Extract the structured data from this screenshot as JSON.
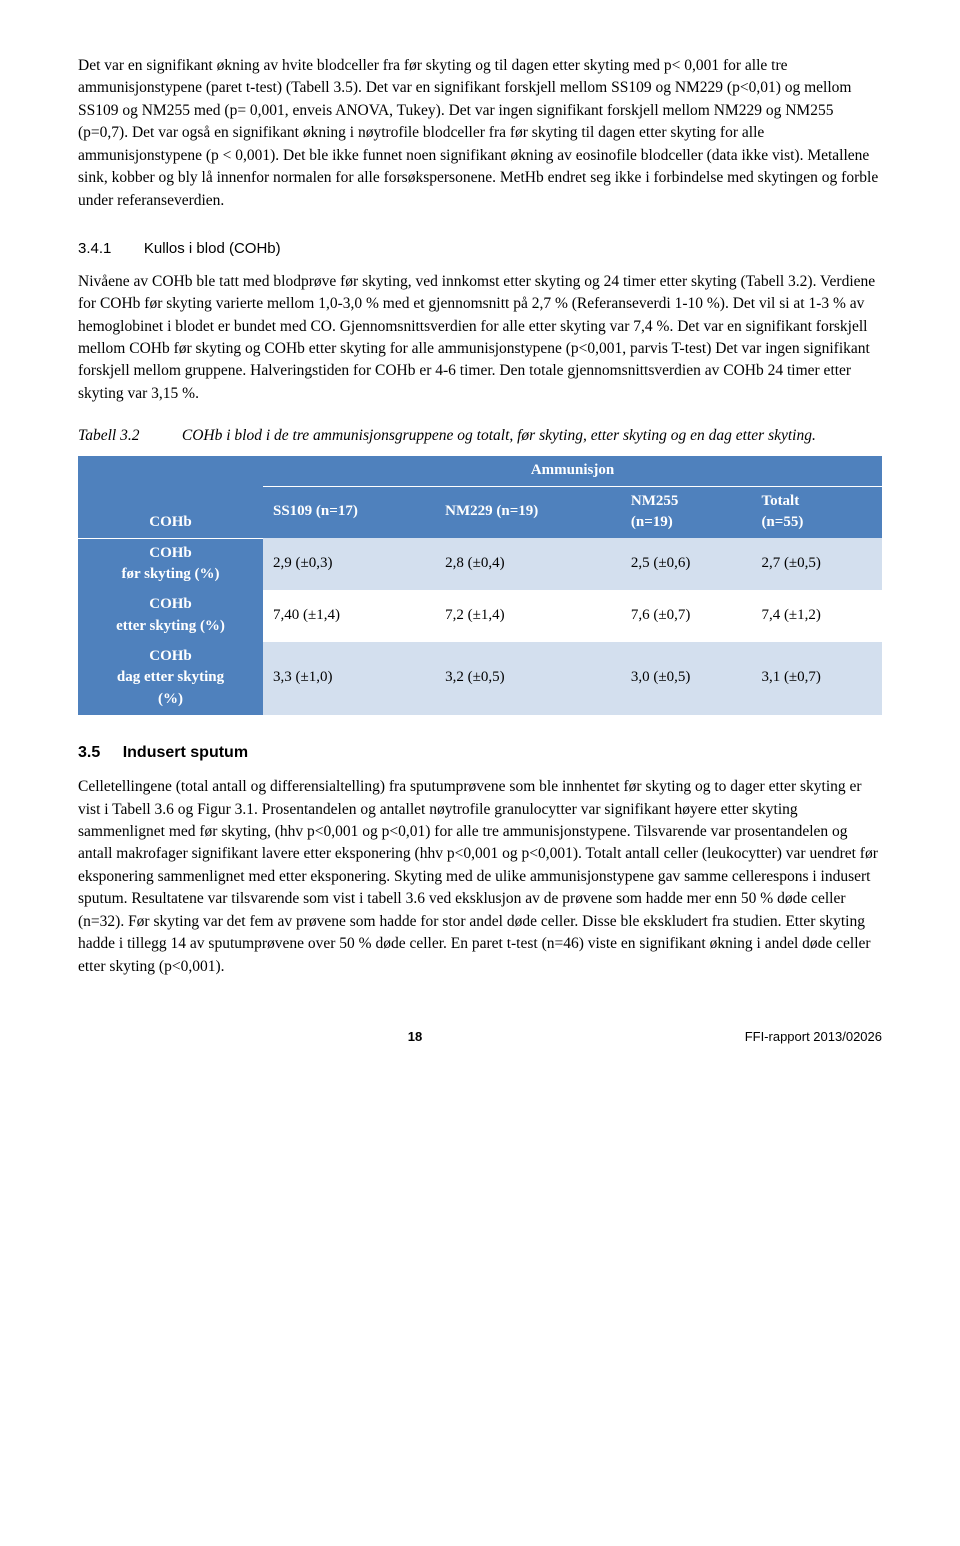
{
  "para1": "Det var en signifikant økning av hvite blodceller fra før skyting og til dagen etter skyting med p< 0,001 for alle tre ammunisjonstypene (paret t-test) (Tabell 3.5). Det var en signifikant forskjell mellom SS109 og NM229 (p<0,01) og mellom SS109 og NM255 med (p= 0,001, enveis ANOVA, Tukey). Det var ingen signifikant forskjell mellom NM229 og NM255 (p=0,7). Det var også en signifikant økning i nøytrofile blodceller fra før skyting til dagen etter skyting for alle ammunisjonstypene (p < 0,001). Det ble ikke funnet noen signifikant økning av eosinofile blodceller (data ikke vist). Metallene sink, kobber og bly lå innenfor normalen for alle forsøkspersonene. MetHb endret seg ikke i forbindelse med skytingen og forble under referanseverdien.",
  "subsec_num": "3.4.1",
  "subsec_title": "Kullos i blod (COHb)",
  "para2": "Nivåene av COHb ble tatt med blodprøve før skyting, ved innkomst etter skyting og 24 timer etter skyting (Tabell 3.2). Verdiene for COHb før skyting varierte mellom 1,0-3,0 % med et gjennomsnitt på 2,7 % (Referanseverdi 1-10 %). Det vil si at 1-3 % av hemoglobinet i blodet er bundet med CO. Gjennomsnittsverdien for alle etter skyting var 7,4 %. Det var en signifikant forskjell mellom COHb før skyting og COHb etter skyting for alle ammunisjonstypene (p<0,001, parvis T-test) Det var ingen signifikant forskjell mellom gruppene. Halveringstiden for COHb er 4-6 timer. Den totale gjennomsnittsverdien av COHb 24 timer etter skyting var 3,15 %.",
  "table_caption_label": "Tabell 3.2",
  "table_caption_text": "COHb i blod i de tre ammunisjonsgruppene og totalt, før skyting, etter skyting og en dag etter skyting.",
  "table": {
    "topheader": "Ammunisjon",
    "rowhdr_title": "COHb",
    "cols": [
      "SS109 (n=17)",
      "NM229 (n=19)",
      "NM255 (n=19)",
      "Totalt (n=55)"
    ],
    "rows": [
      {
        "label": "COHb før skyting (%)",
        "vals": [
          "2,9 (±0,3)",
          "2,8 (±0,4)",
          "2,5 (±0,6)",
          "2,7 (±0,5)"
        ],
        "shade": "light"
      },
      {
        "label": "COHb etter skyting (%)",
        "vals": [
          "7,40 (±1,4)",
          "7,2 (±1,4)",
          "7,6 (±0,7)",
          "7,4 (±1,2)"
        ],
        "shade": "white"
      },
      {
        "label": "COHb dag etter skyting (%)",
        "vals": [
          "3,3 (±1,0)",
          "3,2 (±0,5)",
          "3,0 (±0,5)",
          "3,1 (±0,7)"
        ],
        "shade": "light"
      }
    ]
  },
  "sec_num": "3.5",
  "sec_title": "Indusert sputum",
  "para3": "Celletellingene (total antall og differensialtelling) fra sputumprøvene som ble innhentet før skyting og to dager etter skyting er vist i Tabell 3.6 og Figur 3.1. Prosentandelen og antallet nøytrofile granulocytter var signifikant høyere etter skyting sammenlignet med før skyting, (hhv p<0,001 og p<0,01) for alle tre ammunisjonstypene. Tilsvarende var prosentandelen og antall makrofager signifikant lavere etter eksponering (hhv p<0,001 og p<0,001).  Totalt antall celler (leukocytter) var uendret før eksponering sammenlignet med etter eksponering. Skyting med de ulike ammunisjonstypene gav samme cellerespons i indusert sputum.  Resultatene var tilsvarende som vist i tabell 3.6 ved eksklusjon av de prøvene som hadde mer enn 50 % døde celler (n=32). Før skyting var det fem av prøvene som hadde for stor andel døde celler. Disse ble ekskludert fra studien. Etter skyting hadde i tillegg 14 av sputumprøvene over 50 % døde celler. En paret t-test (n=46) viste en signifikant økning i andel døde celler etter skyting (p<0,001).",
  "footer_page": "18",
  "footer_right": "FFI-rapport 2013/02026"
}
